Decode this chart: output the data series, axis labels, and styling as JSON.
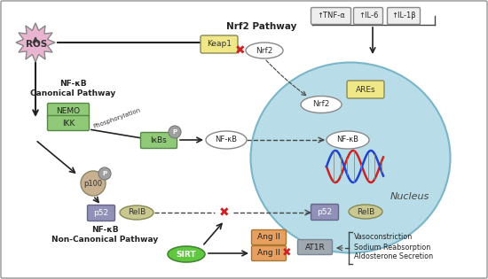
{
  "bg_color": "#e8e8e8",
  "panel_bg": "#ffffff",
  "nucleus_color": "#b8dde8",
  "nucleus_edge": "#7ab5c8",
  "ros_color": "#e8b4d0",
  "ros_text": "ROS",
  "nemo_color": "#90c978",
  "ikk_color": "#90c978",
  "keap1_color": "#f0e888",
  "nrf2_color": "#f0e888",
  "ares_color": "#f0e888",
  "ikbs_color": "#90c978",
  "p100_color": "#c8b090",
  "p_circle_color": "#a0a0a0",
  "p52_color": "#9090b8",
  "relb_color": "#c8c890",
  "sirt_color": "#60c840",
  "angii_color": "#e8a060",
  "at1r_color": "#a0a8b0",
  "effects_text": [
    "Vasoconstriction",
    "Sodium Reabsorption",
    "Aldosterone Secretion"
  ],
  "tnf_labels": [
    "↑TNF-α",
    "↑IL-6",
    "↑IL-1β"
  ]
}
